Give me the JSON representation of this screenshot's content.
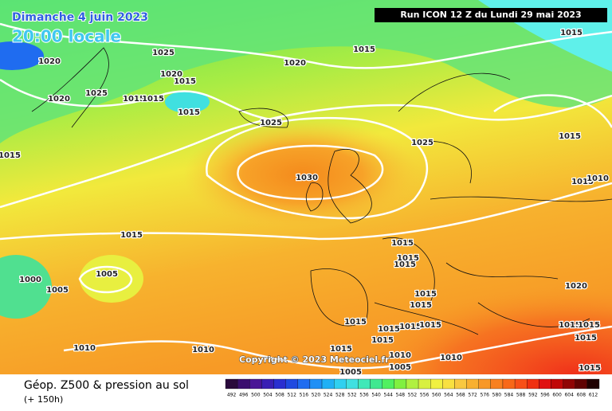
{
  "header": {
    "date": "Dimanche 4 juin 2023",
    "time": "20:00 locale",
    "run": "Run ICON 12 Z du Lundi 29 mai 2023"
  },
  "isobar_labels": [
    1020,
    1020,
    1025,
    1020,
    1015,
    1025,
    1015,
    1015,
    1015,
    1020,
    1015,
    1015,
    1025,
    1025,
    1015,
    1015,
    1030,
    1015,
    1010,
    1015,
    1015,
    1015,
    1015,
    1000,
    1005,
    1005,
    1015,
    1015,
    1020,
    1015,
    1015,
    1015,
    1015,
    1015,
    1015,
    1015,
    1015,
    1010,
    1010,
    1015,
    1010,
    1010,
    1005,
    1005,
    1015
  ],
  "copyright": "Copyright © 2023 Meteociel.fr",
  "footer": {
    "title": "Géop. Z500 & pression au sol",
    "lead": "(+ 150h)"
  },
  "legend": {
    "values": [
      492,
      496,
      500,
      504,
      508,
      512,
      516,
      520,
      524,
      528,
      532,
      536,
      540,
      544,
      548,
      552,
      556,
      560,
      564,
      568,
      572,
      576,
      580,
      584,
      588,
      592,
      596,
      600,
      604,
      608,
      612
    ],
    "colors": [
      "#2a0a3c",
      "#3b0f6e",
      "#4a1596",
      "#3a1fb4",
      "#2a2fd0",
      "#1f4ae0",
      "#1f6cf0",
      "#2090f5",
      "#20b0f5",
      "#30d0f0",
      "#40e0e0",
      "#40e8b8",
      "#40e890",
      "#50f060",
      "#80f040",
      "#b0f040",
      "#d8f040",
      "#f0f040",
      "#f8e040",
      "#f8c840",
      "#f8b030",
      "#f89828",
      "#f88020",
      "#f86818",
      "#f85018",
      "#f03010",
      "#e01010",
      "#c00808",
      "#900404",
      "#600202",
      "#200000"
    ]
  }
}
